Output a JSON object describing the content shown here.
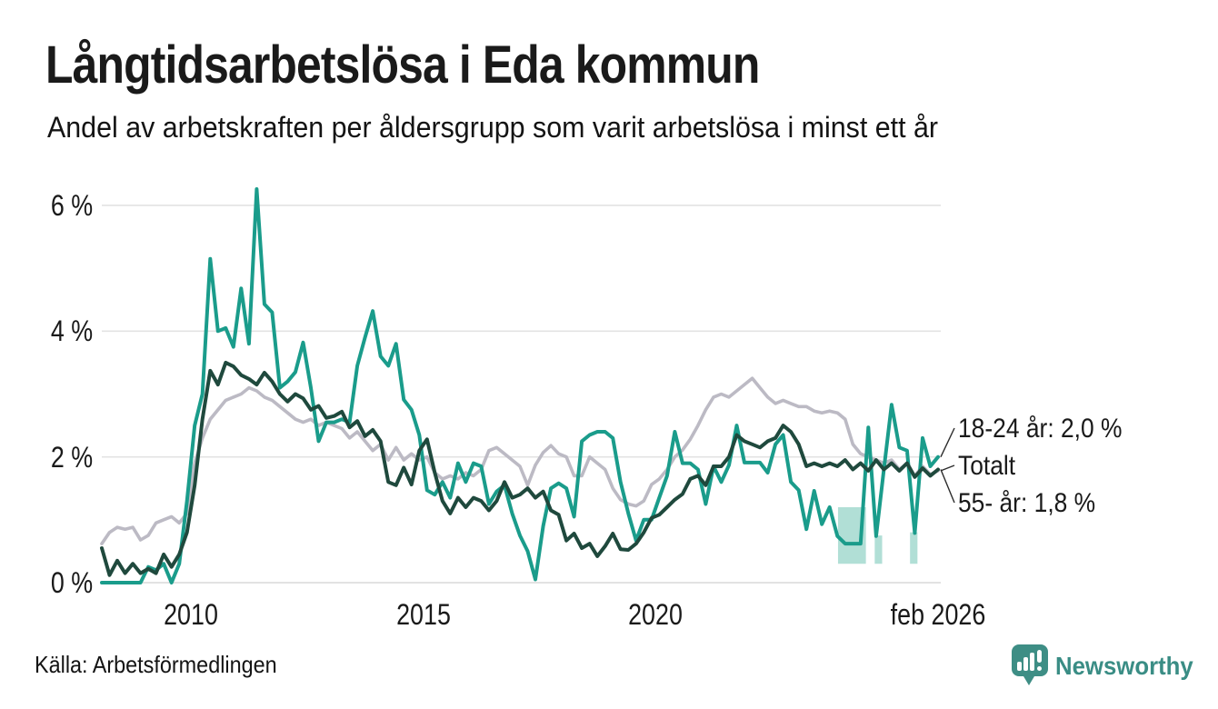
{
  "header": {
    "title": "Långtidsarbetslösa i Eda kommun",
    "subtitle": "Andel av arbetskraften per åldersgrupp som varit arbetslösa i minst ett år"
  },
  "footer": {
    "source": "Källa: Arbetsförmedlingen",
    "brand": "Newsworthy"
  },
  "colors": {
    "series_young": "#1a9c8b",
    "series_total": "#bcbac4",
    "series_old": "#1f493d",
    "uncertainty_band": "#a9dcd2",
    "grid": "#e3e3e3",
    "grid_zero": "#d8d8d8",
    "text": "#1a1a1a",
    "connector": "#2b2b2b",
    "logo": "#3a8d85"
  },
  "chart_data": {
    "type": "line",
    "title": "Långtidsarbetslösa i Eda kommun",
    "subtitle": "Andel av arbetskraften per åldersgrupp som varit arbetslösa i minst ett år",
    "unit": "percent of labour force",
    "x_start": 2008.083,
    "x_end": 2026.083,
    "x_note": "monthly series from feb 2008 to feb 2026, values estimated at two-month steps",
    "ylim": [
      0,
      6.5
    ],
    "grid": "horizontal-only",
    "legend_position": "right-end-labels",
    "y_ticks": [
      {
        "value": 0,
        "label": "0 %"
      },
      {
        "value": 2,
        "label": "2 %"
      },
      {
        "value": 4,
        "label": "4 %"
      },
      {
        "value": 6,
        "label": "6 %"
      }
    ],
    "x_ticks": [
      {
        "year": 2010,
        "label": "2010"
      },
      {
        "year": 2015,
        "label": "2015"
      },
      {
        "year": 2020,
        "label": "2020"
      },
      {
        "year": 2026.083,
        "label": "feb 2026"
      }
    ],
    "series": [
      {
        "name": "18-24 år",
        "color": "#1a9c8b",
        "latest_value": "2,0 %",
        "values": [
          0,
          0,
          0,
          0,
          0,
          0,
          0.25,
          0.2,
          0.3,
          0,
          0.3,
          1.3,
          2.5,
          3.0,
          5.15,
          4.0,
          4.05,
          3.75,
          4.68,
          3.8,
          6.26,
          4.43,
          4.3,
          3.1,
          3.2,
          3.35,
          3.82,
          3.1,
          2.25,
          2.55,
          2.55,
          2.6,
          2.55,
          3.45,
          3.9,
          4.32,
          3.6,
          3.45,
          3.8,
          2.91,
          2.75,
          2.35,
          1.47,
          1.4,
          1.6,
          1.35,
          1.9,
          1.6,
          1.9,
          1.85,
          1.25,
          1.45,
          1.55,
          1.1,
          0.75,
          0.5,
          0.05,
          0.9,
          1.5,
          1.58,
          1.5,
          1.05,
          2.25,
          2.35,
          2.4,
          2.4,
          2.3,
          1.6,
          1.1,
          0.67,
          1.0,
          1.0,
          1.35,
          1.7,
          2.4,
          1.9,
          1.9,
          1.8,
          1.25,
          1.85,
          1.6,
          1.87,
          2.5,
          1.91,
          1.91,
          1.91,
          1.75,
          2.2,
          2.35,
          1.6,
          1.47,
          0.85,
          1.46,
          0.93,
          1.2,
          0.74,
          0.62,
          0.62,
          0.62,
          2.47,
          0.74,
          1.8,
          2.83,
          2.15,
          2.1,
          0.79,
          2.3,
          1.85,
          2.0
        ]
      },
      {
        "name": "Totalt",
        "color": "#bcbac4",
        "latest_value": "",
        "values": [
          0.62,
          0.8,
          0.88,
          0.85,
          0.88,
          0.68,
          0.75,
          0.95,
          1.0,
          1.05,
          0.95,
          1.1,
          1.9,
          2.3,
          2.6,
          2.75,
          2.9,
          2.95,
          3.0,
          3.1,
          3.05,
          2.95,
          2.9,
          2.8,
          2.7,
          2.6,
          2.55,
          2.6,
          2.5,
          2.55,
          2.5,
          2.45,
          2.3,
          2.4,
          2.25,
          2.1,
          2.2,
          1.95,
          2.15,
          1.95,
          2.05,
          1.95,
          2.0,
          1.75,
          1.65,
          1.7,
          1.65,
          1.75,
          1.7,
          1.8,
          2.1,
          2.15,
          2.05,
          1.95,
          1.85,
          1.55,
          1.87,
          2.07,
          2.18,
          2.05,
          2.0,
          1.7,
          1.7,
          2.0,
          1.9,
          1.8,
          1.5,
          1.32,
          1.25,
          1.22,
          1.3,
          1.56,
          1.65,
          1.8,
          2.0,
          2.11,
          2.28,
          2.5,
          2.75,
          2.95,
          3.0,
          2.95,
          3.05,
          3.15,
          3.25,
          3.1,
          2.95,
          2.85,
          2.9,
          2.85,
          2.8,
          2.8,
          2.73,
          2.7,
          2.73,
          2.7,
          2.6,
          2.2,
          2.05,
          2.0,
          1.95,
          1.9,
          1.95,
          1.8,
          1.9,
          1.7,
          1.85,
          1.72,
          1.78
        ]
      },
      {
        "name": "55- år",
        "color": "#1f493d",
        "latest_value": "1,8 %",
        "values": [
          0.55,
          0.12,
          0.35,
          0.15,
          0.3,
          0.15,
          0.22,
          0.15,
          0.45,
          0.25,
          0.45,
          0.8,
          1.55,
          2.6,
          3.37,
          3.15,
          3.5,
          3.44,
          3.3,
          3.24,
          3.15,
          3.34,
          3.2,
          3.0,
          2.88,
          3.0,
          2.93,
          2.75,
          2.81,
          2.62,
          2.65,
          2.72,
          2.47,
          2.57,
          2.33,
          2.43,
          2.25,
          1.6,
          1.55,
          1.83,
          1.56,
          2.1,
          2.28,
          1.75,
          1.3,
          1.1,
          1.35,
          1.2,
          1.35,
          1.3,
          1.15,
          1.3,
          1.6,
          1.35,
          1.4,
          1.5,
          1.35,
          1.45,
          1.15,
          1.08,
          0.67,
          0.78,
          0.55,
          0.62,
          0.42,
          0.58,
          0.78,
          0.53,
          0.52,
          0.62,
          0.8,
          1.03,
          1.08,
          1.2,
          1.32,
          1.41,
          1.65,
          1.7,
          1.55,
          1.85,
          1.85,
          2.0,
          2.35,
          2.25,
          2.2,
          2.15,
          2.25,
          2.3,
          2.5,
          2.4,
          2.2,
          1.85,
          1.9,
          1.85,
          1.9,
          1.85,
          1.95,
          1.8,
          1.9,
          1.78,
          1.95,
          1.8,
          1.9,
          1.78,
          1.9,
          1.68,
          1.82,
          1.7,
          1.8
        ]
      }
    ],
    "end_labels": [
      {
        "text": "18-24 år: 2,0 %",
        "series": "18-24 år"
      },
      {
        "text": "Totalt",
        "series": "Totalt"
      },
      {
        "text": "55- år: 1,8 %",
        "series": "55- år"
      }
    ],
    "uncertainty_bands": [
      {
        "series": "18-24 år",
        "from": 2023.93,
        "to": 2024.53,
        "top": 1.2,
        "bottom": 0.3
      },
      {
        "series": "18-24 år",
        "from": 2024.72,
        "to": 2024.88,
        "top": 0.75,
        "bottom": 0.3
      },
      {
        "series": "18-24 år",
        "from": 2025.48,
        "to": 2025.64,
        "top": 0.8,
        "bottom": 0.3
      }
    ]
  }
}
